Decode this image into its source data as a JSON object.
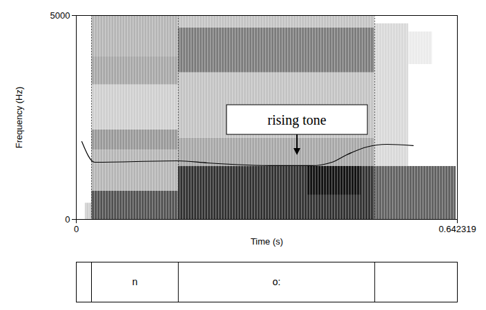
{
  "chart_data": {
    "type": "spectrogram",
    "xlabel": "Time (s)",
    "ylabel": "Frequency (Hz)",
    "xlim": [
      0,
      0.642319
    ],
    "ylim": [
      0,
      5000
    ],
    "xticks": [
      0,
      0.642319
    ],
    "yticks": [
      0,
      5000
    ],
    "cells": [
      {
        "t0": 0.015,
        "t1": 0.0256,
        "f0": 0,
        "f1": 400,
        "level": 0.3
      },
      {
        "t0": 0.0256,
        "t1": 0.172,
        "f0": 0,
        "f1": 700,
        "level": 0.75
      },
      {
        "t0": 0.0256,
        "t1": 0.172,
        "f0": 700,
        "f1": 1700,
        "level": 0.4
      },
      {
        "t0": 0.0256,
        "t1": 0.172,
        "f0": 1700,
        "f1": 2200,
        "level": 0.5
      },
      {
        "t0": 0.0256,
        "t1": 0.172,
        "f0": 2200,
        "f1": 3300,
        "level": 0.3
      },
      {
        "t0": 0.0256,
        "t1": 0.172,
        "f0": 3300,
        "f1": 4000,
        "level": 0.45
      },
      {
        "t0": 0.0256,
        "t1": 0.172,
        "f0": 4000,
        "f1": 5000,
        "level": 0.4
      },
      {
        "t0": 0.172,
        "t1": 0.503,
        "f0": 0,
        "f1": 1300,
        "level": 0.85
      },
      {
        "t0": 0.172,
        "t1": 0.503,
        "f0": 1300,
        "f1": 2000,
        "level": 0.45
      },
      {
        "t0": 0.172,
        "t1": 0.503,
        "f0": 2000,
        "f1": 3600,
        "level": 0.35
      },
      {
        "t0": 0.172,
        "t1": 0.503,
        "f0": 3600,
        "f1": 4700,
        "level": 0.6
      },
      {
        "t0": 0.172,
        "t1": 0.503,
        "f0": 4700,
        "f1": 5000,
        "level": 0.35
      },
      {
        "t0": 0.39,
        "t1": 0.48,
        "f0": 600,
        "f1": 1300,
        "level": 0.95
      },
      {
        "t0": 0.503,
        "t1": 0.64,
        "f0": 0,
        "f1": 1300,
        "level": 0.7
      },
      {
        "t0": 0.503,
        "t1": 0.56,
        "f0": 1300,
        "f1": 4800,
        "level": 0.25
      },
      {
        "t0": 0.56,
        "t1": 0.6,
        "f0": 3800,
        "f1": 4600,
        "level": 0.15
      }
    ],
    "pitch": {
      "x": [
        0.0093,
        0.031,
        0.172,
        0.221,
        0.338,
        0.396,
        0.431,
        0.454,
        0.489,
        0.524,
        0.568
      ],
      "y": [
        1909,
        1402,
        1436,
        1385,
        1318,
        1318,
        1402,
        1571,
        1774,
        1841,
        1808
      ]
    },
    "boundaries": [
      0.0256,
      0.172,
      0.503
    ],
    "segments": [
      {
        "label": "n",
        "start": 0.0256,
        "end": 0.172
      },
      {
        "label": "o:",
        "start": 0.172,
        "end": 0.503
      }
    ],
    "annotation": {
      "text": "rising tone",
      "x": 0.3725,
      "y": 1570
    }
  }
}
